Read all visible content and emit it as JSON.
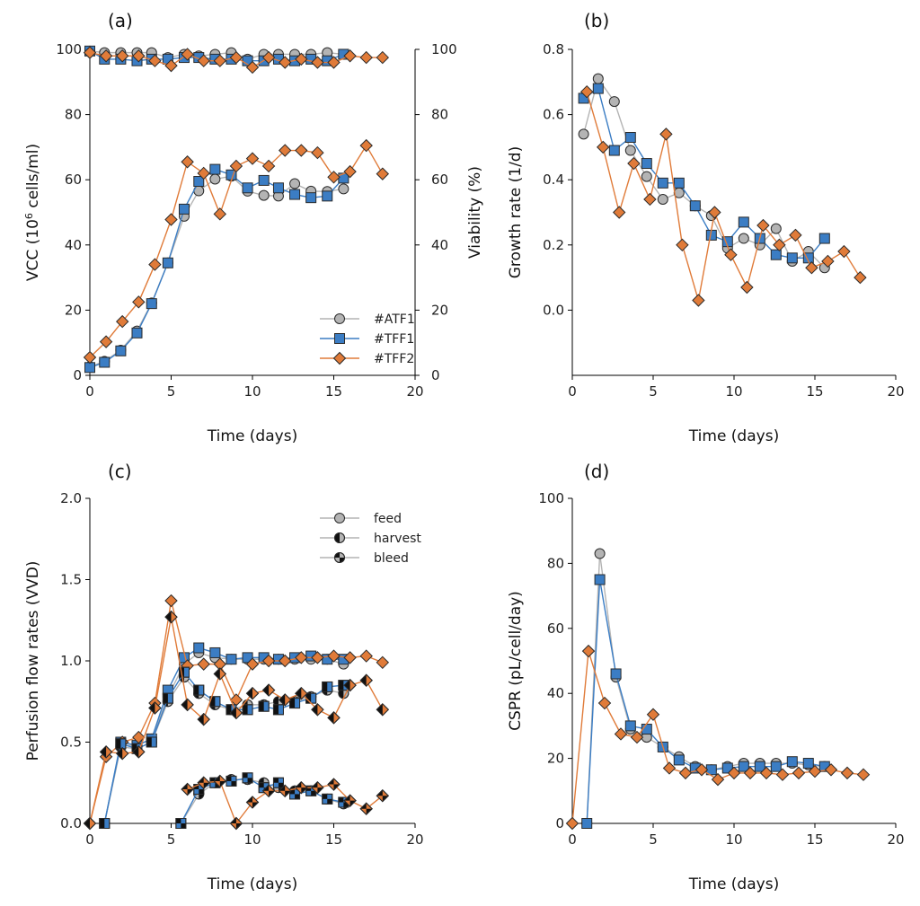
{
  "colors": {
    "ATF1": "#b4b4b4",
    "TFF1": "#3b7dc4",
    "TFF2": "#e07b39",
    "marker_edge": "#2b2b2b"
  },
  "chart_data": [
    {
      "type": "scatter",
      "title": "(a)",
      "xlabel": "Time (days)",
      "ylabel": "VCC (10",
      "ylabel_sup": "6",
      "ylabel_tail": " cells/ml)",
      "ylabel_right": "Viability (%)",
      "xlim": [
        0,
        20
      ],
      "ylim": [
        0,
        100
      ],
      "ylim_right": [
        0,
        100
      ],
      "xticks": [
        "0",
        "5",
        "10",
        "15",
        "20"
      ],
      "yticks": [
        "0",
        "20",
        "40",
        "60",
        "80",
        "100"
      ],
      "yticks_right": [
        "0",
        "20",
        "40",
        "60",
        "80",
        "100"
      ],
      "legend": {
        "placement": "lower-right",
        "entries": [
          "#ATF1",
          "#TFF1",
          "#TFF2"
        ]
      },
      "series": [
        {
          "name": "#ATF1",
          "marker": "circle",
          "x": [
            0,
            0.9,
            1.9,
            2.9,
            3.8,
            4.8,
            5.8,
            6.7,
            7.7,
            8.7,
            9.7,
            10.7,
            11.6,
            12.6,
            13.6,
            14.6,
            15.6
          ],
          "y": [
            2.6,
            4.3,
            7.7,
            13.6,
            22.2,
            34.5,
            48.8,
            56.6,
            60.2,
            61.1,
            56.5,
            55.2,
            55.0,
            58.8,
            56.5,
            56.4,
            57.2
          ]
        },
        {
          "name": "#TFF1",
          "marker": "square",
          "x": [
            0,
            0.9,
            1.9,
            2.9,
            3.8,
            4.8,
            5.8,
            6.7,
            7.7,
            8.7,
            9.7,
            10.7,
            11.6,
            12.6,
            13.6,
            14.6,
            15.6
          ],
          "y": [
            2.4,
            4.0,
            7.5,
            13.0,
            22.0,
            34.5,
            51.0,
            59.5,
            63.2,
            61.5,
            57.5,
            59.8,
            57.5,
            55.5,
            54.5,
            55.0,
            60.5
          ]
        },
        {
          "name": "#TFF2",
          "marker": "diamond",
          "x": [
            0,
            1,
            2,
            3,
            4,
            5,
            6,
            7,
            8,
            9,
            10,
            11,
            12,
            13,
            14,
            15,
            16,
            17,
            18
          ],
          "y": [
            5.5,
            10.3,
            16.5,
            22.5,
            34.0,
            47.8,
            65.5,
            62.0,
            49.5,
            64.2,
            66.5,
            64.2,
            69.0,
            69.0,
            68.3,
            60.8,
            62.5,
            70.5,
            61.8
          ]
        }
      ],
      "series_right": [
        {
          "name": "#ATF1",
          "marker": "circle",
          "x": [
            0,
            0.9,
            1.9,
            2.9,
            3.8,
            4.8,
            5.8,
            6.7,
            7.7,
            8.7,
            9.7,
            10.7,
            11.6,
            12.6,
            13.6,
            14.6,
            15.6
          ],
          "y": [
            99.5,
            99.0,
            99.0,
            99.0,
            99.0,
            97.5,
            98.5,
            98.0,
            98.5,
            99.0,
            97.0,
            98.5,
            98.5,
            98.5,
            98.5,
            99.0,
            98.5
          ]
        },
        {
          "name": "#TFF1",
          "marker": "square",
          "x": [
            0,
            0.9,
            1.9,
            2.9,
            3.8,
            4.8,
            5.8,
            6.7,
            7.7,
            8.7,
            9.7,
            10.7,
            11.6,
            12.6,
            13.6,
            14.6,
            15.6
          ],
          "y": [
            99.5,
            97.0,
            97.0,
            96.5,
            97.0,
            97.0,
            97.5,
            97.5,
            97.0,
            97.0,
            96.5,
            96.5,
            97.0,
            96.5,
            97.0,
            96.5,
            98.5
          ]
        },
        {
          "name": "#TFF2",
          "marker": "diamond",
          "x": [
            0,
            1,
            2,
            3,
            4,
            5,
            6,
            7,
            8,
            9,
            10,
            11,
            12,
            13,
            14,
            15,
            16,
            17,
            18
          ],
          "y": [
            99.0,
            98.0,
            98.0,
            98.0,
            96.5,
            95.0,
            98.5,
            96.5,
            96.5,
            97.5,
            94.5,
            97.5,
            96.0,
            97.0,
            96.0,
            96.0,
            98.0,
            97.5,
            97.5
          ]
        }
      ]
    },
    {
      "type": "line",
      "title": "(b)",
      "xlabel": "Time (days)",
      "ylabel": "Growth rate (1/d)",
      "xlim": [
        0,
        20
      ],
      "ylim": [
        -0.2,
        0.8
      ],
      "xticks": [
        "0",
        "5",
        "10",
        "15",
        "20"
      ],
      "yticks": [
        "0.0",
        "0.2",
        "0.4",
        "0.6",
        "0.8"
      ],
      "ytick_values": [
        0,
        0.2,
        0.4,
        0.6,
        0.8
      ],
      "series": [
        {
          "name": "#ATF1",
          "marker": "circle",
          "x": [
            0.7,
            1.6,
            2.6,
            3.6,
            4.6,
            5.6,
            6.6,
            7.6,
            8.6,
            9.6,
            10.6,
            11.6,
            12.6,
            13.6,
            14.6,
            15.6
          ],
          "y": [
            0.54,
            0.71,
            0.64,
            0.49,
            0.41,
            0.34,
            0.36,
            0.32,
            0.29,
            0.19,
            0.22,
            0.2,
            0.25,
            0.15,
            0.18,
            0.13
          ]
        },
        {
          "name": "#TFF1",
          "marker": "square",
          "x": [
            0.7,
            1.6,
            2.6,
            3.6,
            4.6,
            5.6,
            6.6,
            7.6,
            8.6,
            9.6,
            10.6,
            11.6,
            12.6,
            13.6,
            14.6,
            15.6
          ],
          "y": [
            0.65,
            0.68,
            0.49,
            0.53,
            0.45,
            0.39,
            0.39,
            0.32,
            0.23,
            0.21,
            0.27,
            0.22,
            0.17,
            0.16,
            0.16,
            0.22
          ]
        },
        {
          "name": "#TFF2",
          "marker": "diamond",
          "x": [
            0.9,
            1.9,
            2.9,
            3.8,
            4.8,
            5.8,
            6.8,
            7.8,
            8.8,
            9.8,
            10.8,
            11.8,
            12.8,
            13.8,
            14.8,
            15.8,
            16.8,
            17.8
          ],
          "y": [
            0.67,
            0.5,
            0.3,
            0.45,
            0.34,
            0.54,
            0.2,
            0.03,
            0.3,
            0.17,
            0.07,
            0.26,
            0.2,
            0.23,
            0.13,
            0.15,
            0.18,
            0.1
          ]
        }
      ]
    },
    {
      "type": "line",
      "title": "(c)",
      "xlabel": "Time (days)",
      "ylabel": "Perfusion flow rates (VVD)",
      "xlim": [
        0,
        20
      ],
      "ylim": [
        0,
        2
      ],
      "xticks": [
        "0",
        "5",
        "10",
        "15",
        "20"
      ],
      "yticks": [
        "0.0",
        "0.5",
        "1.0",
        "1.5",
        "2.0"
      ],
      "ytick_values": [
        0,
        0.5,
        1.0,
        1.5,
        2.0
      ],
      "legend": {
        "placement": "top-right",
        "entries": [
          "feed",
          "harvest",
          "bleed"
        ]
      },
      "series": [
        {
          "name": "#ATF1 feed",
          "marker": "circle",
          "fill": "full",
          "x": [
            0.9,
            1.9,
            2.9,
            3.8,
            4.8,
            5.8,
            6.7,
            7.7,
            8.7,
            9.7,
            10.7,
            11.6,
            12.6,
            13.6,
            14.6,
            15.6
          ],
          "y": [
            0,
            0.48,
            0.48,
            0.52,
            0.78,
            0.98,
            1.05,
            1.02,
            1.01,
            1.01,
            1.01,
            1.01,
            1.01,
            1.01,
            1.01,
            0.98
          ]
        },
        {
          "name": "#TFF1 feed",
          "marker": "square",
          "fill": "full",
          "x": [
            0.9,
            1.9,
            2.9,
            3.8,
            4.8,
            5.8,
            6.7,
            7.7,
            8.7,
            9.7,
            10.7,
            11.6,
            12.6,
            13.6,
            14.6,
            15.6
          ],
          "y": [
            0,
            0.5,
            0.48,
            0.52,
            0.82,
            1.02,
            1.08,
            1.05,
            1.01,
            1.02,
            1.02,
            1.01,
            1.02,
            1.03,
            1.01,
            1.01
          ]
        },
        {
          "name": "#TFF2 feed",
          "marker": "diamond",
          "fill": "full",
          "x": [
            0,
            1,
            2,
            3,
            4,
            5,
            6,
            7,
            8,
            9,
            10,
            11,
            12,
            13,
            14,
            15,
            16,
            17,
            18
          ],
          "y": [
            0,
            0.41,
            0.5,
            0.53,
            0.74,
            1.37,
            0.97,
            0.98,
            0.98,
            0.76,
            0.98,
            1.0,
            1.0,
            1.02,
            1.02,
            1.03,
            1.02,
            1.03,
            0.99
          ]
        },
        {
          "name": "#ATF1 harvest",
          "marker": "circle",
          "fill": "half",
          "x": [
            0.9,
            1.9,
            2.9,
            3.8,
            4.8,
            5.8,
            6.7,
            7.7,
            8.7,
            9.7,
            10.7,
            11.6,
            12.6,
            13.6,
            14.6,
            15.6
          ],
          "y": [
            0,
            0.47,
            0.46,
            0.5,
            0.75,
            0.9,
            0.8,
            0.73,
            0.7,
            0.73,
            0.73,
            0.75,
            0.75,
            0.78,
            0.82,
            0.8
          ]
        },
        {
          "name": "#TFF1 harvest",
          "marker": "square",
          "fill": "half",
          "x": [
            0.9,
            1.9,
            2.9,
            3.8,
            4.8,
            5.8,
            6.7,
            7.7,
            8.7,
            9.7,
            10.7,
            11.6,
            12.6,
            13.6,
            14.6,
            15.6
          ],
          "y": [
            0,
            0.49,
            0.46,
            0.5,
            0.77,
            0.93,
            0.82,
            0.75,
            0.7,
            0.7,
            0.72,
            0.7,
            0.74,
            0.77,
            0.84,
            0.85
          ]
        },
        {
          "name": "#TFF2 harvest",
          "marker": "diamond",
          "fill": "half",
          "x": [
            0,
            1,
            2,
            3,
            4,
            5,
            6,
            7,
            8,
            9,
            10,
            11,
            12,
            13,
            14,
            15,
            16,
            17,
            18
          ],
          "y": [
            0,
            0.44,
            0.43,
            0.44,
            0.71,
            1.27,
            0.73,
            0.64,
            0.92,
            0.68,
            0.8,
            0.82,
            0.76,
            0.8,
            0.7,
            0.65,
            0.85,
            0.88,
            0.7
          ]
        },
        {
          "name": "#ATF1 bleed",
          "marker": "circle",
          "fill": "quarter",
          "x": [
            5.6,
            6.7,
            7.7,
            8.7,
            9.7,
            10.7,
            11.6,
            12.6,
            13.6,
            14.6,
            15.6
          ],
          "y": [
            0,
            0.18,
            0.25,
            0.27,
            0.27,
            0.25,
            0.22,
            0.2,
            0.2,
            0.15,
            0.12
          ]
        },
        {
          "name": "#TFF1 bleed",
          "marker": "square",
          "fill": "quarter",
          "x": [
            5.6,
            6.7,
            7.7,
            8.7,
            9.7,
            10.7,
            11.6,
            12.6,
            13.6,
            14.6,
            15.6
          ],
          "y": [
            0,
            0.21,
            0.25,
            0.26,
            0.28,
            0.22,
            0.25,
            0.18,
            0.2,
            0.15,
            0.13
          ]
        },
        {
          "name": "#TFF2 bleed",
          "marker": "diamond",
          "fill": "quarter",
          "x": [
            6,
            7,
            8,
            9,
            10,
            11,
            12,
            13,
            14,
            15,
            16,
            17,
            18
          ],
          "y": [
            0.21,
            0.25,
            0.26,
            0,
            0.13,
            0.2,
            0.2,
            0.22,
            0.22,
            0.24,
            0.14,
            0.09,
            0.17
          ]
        }
      ]
    },
    {
      "type": "line",
      "title": "(d)",
      "xlabel": "Time (days)",
      "ylabel": "CSPR (pL/cell/day)",
      "xlim": [
        0,
        20
      ],
      "ylim": [
        0,
        100
      ],
      "xticks": [
        "0",
        "5",
        "10",
        "15",
        "20"
      ],
      "yticks": [
        "0",
        "20",
        "40",
        "60",
        "80",
        "100"
      ],
      "ytick_values": [
        0,
        20,
        40,
        60,
        80,
        100
      ],
      "series": [
        {
          "name": "#ATF1",
          "marker": "circle",
          "x": [
            0.9,
            1.7,
            2.7,
            3.6,
            4.6,
            5.6,
            6.6,
            7.6,
            8.6,
            9.6,
            10.6,
            11.6,
            12.6,
            13.6,
            14.6,
            15.6
          ],
          "y": [
            0,
            83,
            45,
            29,
            26.5,
            23.5,
            20.5,
            17.5,
            16.5,
            17.5,
            18.5,
            18.5,
            18.5,
            18.5,
            18.0,
            17.5
          ]
        },
        {
          "name": "#TFF1",
          "marker": "square",
          "x": [
            0.9,
            1.7,
            2.7,
            3.6,
            4.6,
            5.6,
            6.6,
            7.6,
            8.6,
            9.6,
            10.6,
            11.6,
            12.6,
            13.6,
            14.6,
            15.6
          ],
          "y": [
            0,
            75,
            46,
            30,
            29,
            23.5,
            19.5,
            17,
            16.5,
            17,
            17.5,
            17.5,
            17.5,
            19,
            18.5,
            17.5
          ]
        },
        {
          "name": "#TFF2",
          "marker": "diamond",
          "x": [
            0,
            1,
            2,
            3,
            4,
            5,
            6,
            7,
            8,
            9,
            10,
            11,
            12,
            13,
            14,
            15,
            16,
            17,
            18
          ],
          "y": [
            0,
            53,
            37,
            27.5,
            26.5,
            33.5,
            17,
            15.5,
            16.5,
            13.5,
            15.5,
            15.5,
            15.5,
            15,
            15.5,
            16,
            16.5,
            15.5,
            15
          ]
        }
      ]
    }
  ]
}
